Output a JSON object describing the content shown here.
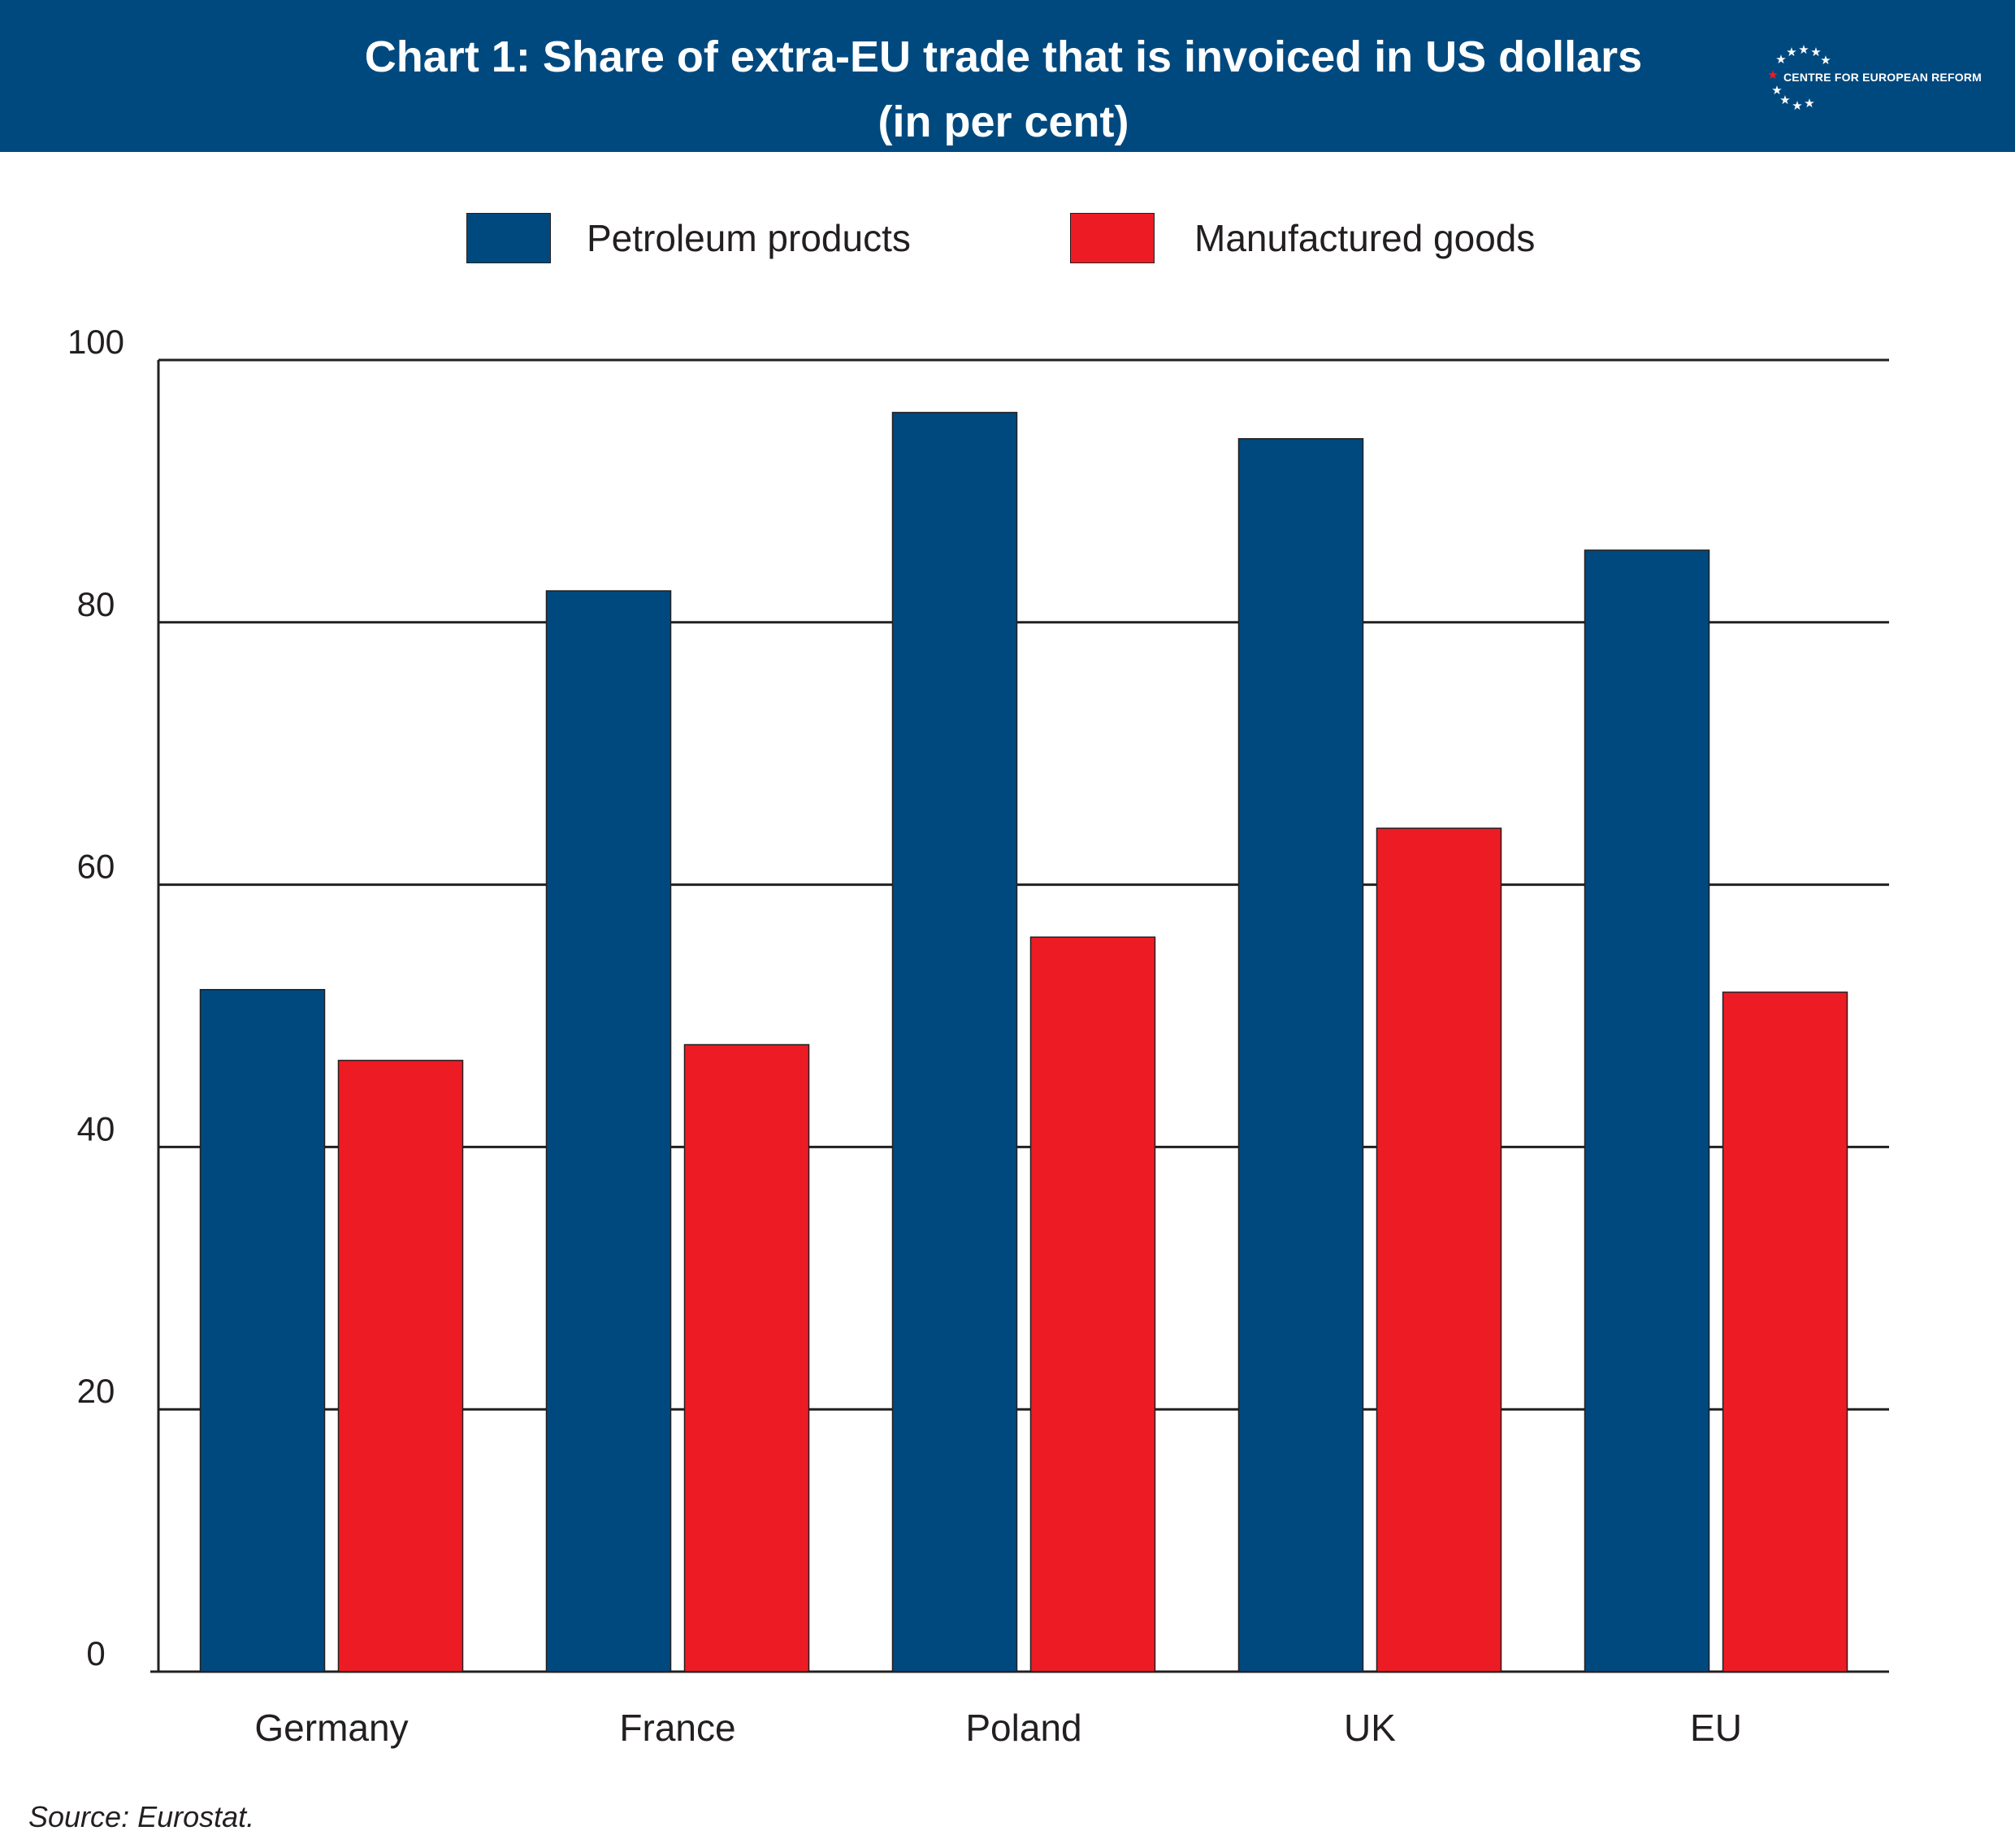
{
  "header": {
    "title_line1": "Chart 1: Share of extra-EU trade that is invoiced in US dollars",
    "title_line2": "(in per cent)"
  },
  "logo": {
    "text": "CENTRE FOR EUROPEAN REFORM"
  },
  "colors": {
    "header_bg": "#00497f",
    "petroleum": "#00497f",
    "manufactured": "#ed1c24",
    "axis": "#231f20"
  },
  "chart_data": {
    "type": "bar",
    "title": "Chart 1: Share of extra-EU trade that is invoiced in US dollars",
    "subtitle": "(in per cent)",
    "xlabel": "",
    "ylabel": "",
    "categories": [
      "Germany",
      "France",
      "Poland",
      "UK",
      "EU"
    ],
    "series": [
      {
        "name": "Petroleum products",
        "color": "#00497f",
        "values": [
          52,
          82.4,
          96,
          94,
          85.5
        ]
      },
      {
        "name": "Manufactured goods",
        "color": "#ed1c24",
        "values": [
          46.6,
          47.8,
          56,
          64.3,
          51.8
        ]
      }
    ],
    "ylim": [
      0,
      100
    ],
    "yticks": [
      "0",
      "20",
      "40",
      "60",
      "80",
      "100"
    ],
    "grid": true,
    "legend_position": "top-center"
  },
  "source": "Source: Eurostat."
}
